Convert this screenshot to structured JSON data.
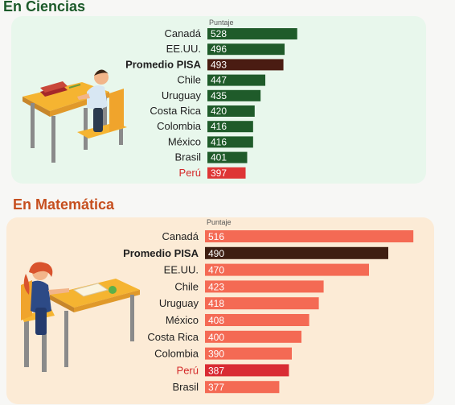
{
  "colors": {
    "science_bar": "#1f5b2a",
    "science_average": "#4a1c12",
    "science_peru": "#de3535",
    "math_bar": "#f46a54",
    "math_average": "#3e1e12",
    "math_peru": "#d92b33",
    "text": "#1f1f1f",
    "peru_label": "#d42a2a"
  },
  "chart_data": [
    {
      "type": "bar",
      "orientation": "horizontal",
      "title": "En Ciencias",
      "value_header": "Puntaje",
      "categories": [
        "Canadá",
        "EE.UU.",
        "Promedio PISA",
        "Chile",
        "Uruguay",
        "Costa Rica",
        "Colombia",
        "México",
        "Brasil",
        "Perú"
      ],
      "values": [
        528,
        496,
        493,
        447,
        435,
        420,
        416,
        416,
        401,
        397
      ],
      "highlight": {
        "Promedio PISA": "average",
        "Perú": "peru"
      },
      "data_labels": true,
      "grid": false,
      "legend": "none"
    },
    {
      "type": "bar",
      "orientation": "horizontal",
      "title": "En Matemática",
      "value_header": "Puntaje",
      "categories": [
        "Canadá",
        "Promedio PISA",
        "EE.UU.",
        "Chile",
        "Uruguay",
        "México",
        "Costa Rica",
        "Colombia",
        "Perú",
        "Brasil"
      ],
      "values": [
        516,
        490,
        470,
        423,
        418,
        408,
        400,
        390,
        387,
        377
      ],
      "highlight": {
        "Promedio PISA": "average",
        "Perú": "peru"
      },
      "data_labels": true,
      "grid": false,
      "legend": "none"
    }
  ]
}
